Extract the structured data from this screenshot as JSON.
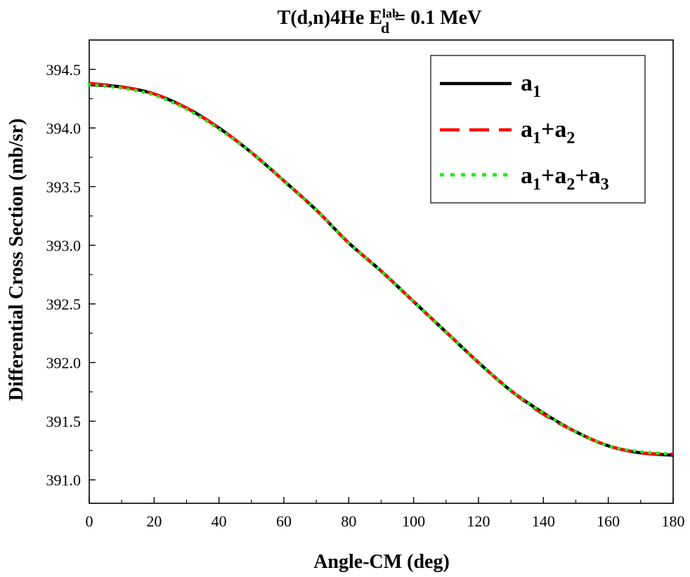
{
  "chart_data": {
    "type": "line",
    "title": {
      "main": "T(d,n)4He E",
      "sub": "d",
      "sup": "lab",
      "tail": " = 0.1 MeV"
    },
    "xlabel": "Angle-CM (deg)",
    "ylabel": "Differential Cross Section (mb/sr)",
    "xlim": [
      0,
      180
    ],
    "ylim": [
      390.8,
      394.75
    ],
    "xticks": [
      0,
      20,
      40,
      60,
      80,
      100,
      120,
      140,
      160,
      180
    ],
    "xtick_labels": [
      "0",
      "20",
      "40",
      "60",
      "80",
      "100",
      "120",
      "140",
      "160",
      "180"
    ],
    "yticks": [
      391.0,
      391.5,
      392.0,
      392.5,
      393.0,
      393.5,
      394.0,
      394.5
    ],
    "ytick_labels": [
      "391.0",
      "391.5",
      "392.0",
      "392.5",
      "393.0",
      "393.5",
      "394.0",
      "394.5"
    ],
    "grid": false,
    "legend_position": "top-right",
    "series": [
      {
        "name": "a1",
        "legend": {
          "base": "a",
          "sub": "1"
        },
        "color": "#000000",
        "style": "solid",
        "x": [
          0,
          10,
          20,
          30,
          40,
          50,
          60,
          70,
          80,
          90,
          100,
          110,
          120,
          130,
          140,
          150,
          160,
          170,
          180
        ],
        "y": [
          394.37,
          394.35,
          394.29,
          394.17,
          394.0,
          393.79,
          393.55,
          393.3,
          393.02,
          392.78,
          392.52,
          392.26,
          392.0,
          391.76,
          391.57,
          391.41,
          391.29,
          391.23,
          391.21
        ]
      },
      {
        "name": "a1+a2",
        "legend": {
          "base": "a",
          "sub": "1",
          "mid": "+a",
          "sub2": "2"
        },
        "color": "#ff0000",
        "style": "dashed",
        "x": [
          0,
          10,
          20,
          30,
          40,
          50,
          60,
          70,
          80,
          90,
          100,
          110,
          120,
          130,
          140,
          150,
          160,
          170,
          180
        ],
        "y": [
          394.38,
          394.35,
          394.29,
          394.17,
          394.0,
          393.79,
          393.55,
          393.3,
          393.02,
          392.78,
          392.52,
          392.26,
          392.0,
          391.76,
          391.56,
          391.41,
          391.29,
          391.23,
          391.22
        ]
      },
      {
        "name": "a1+a2+a3",
        "legend": {
          "base": "a",
          "sub": "1",
          "mid": "+a",
          "sub2": "2",
          "mid2": "+a",
          "sub3": "3"
        },
        "color": "#22ee22",
        "style": "dotted",
        "x": [
          0,
          10,
          20,
          30,
          40,
          50,
          60,
          70,
          80,
          90,
          100,
          110,
          120,
          130,
          140,
          150,
          160,
          170,
          180
        ],
        "y": [
          394.37,
          394.34,
          394.28,
          394.16,
          393.99,
          393.79,
          393.55,
          393.3,
          393.02,
          392.78,
          392.52,
          392.26,
          392.0,
          391.76,
          391.57,
          391.41,
          391.29,
          391.24,
          391.22
        ]
      }
    ]
  }
}
